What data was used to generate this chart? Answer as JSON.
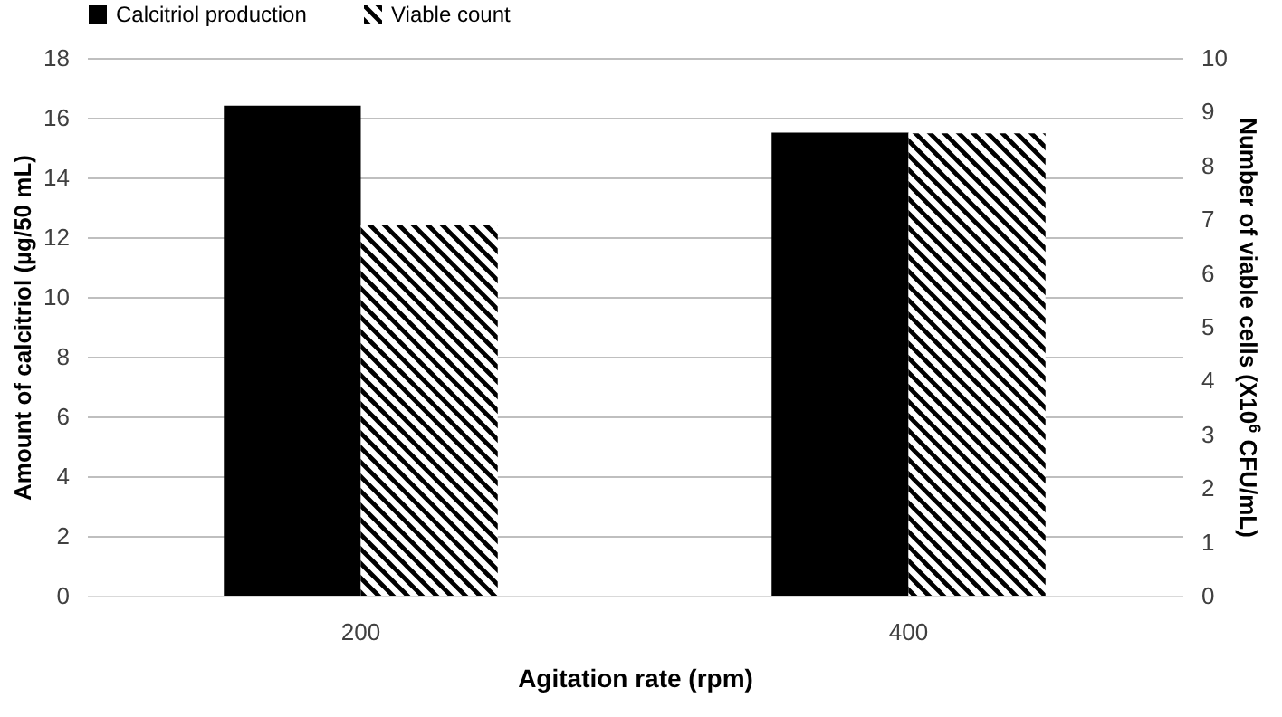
{
  "chart_data": {
    "type": "bar",
    "xlabel": "Agitation rate (rpm)",
    "ylabel": "Amount of calcitriol (µg/50 mL)",
    "y2label": "Number of viable cells (X10$^{6}$ CFU/mL)",
    "categories": [
      "200",
      "400"
    ],
    "series": [
      {
        "name": "Calcitriol production",
        "color": "#000000",
        "values": [
          16.4,
          15.5
        ]
      },
      {
        "name": "Viable count",
        "color": "#000000",
        "values": [
          6.9,
          8.6
        ],
        "axis": "y2"
      }
    ],
    "ylim": [
      0,
      18
    ],
    "yticks": [
      0,
      2,
      4,
      6,
      8,
      10,
      12,
      14,
      16,
      18
    ],
    "y2lim": [
      0,
      10
    ],
    "y2ticks": [
      0,
      1,
      2,
      3,
      4,
      5,
      6,
      7,
      8,
      9,
      10
    ],
    "grid": "y",
    "legend": "top"
  }
}
